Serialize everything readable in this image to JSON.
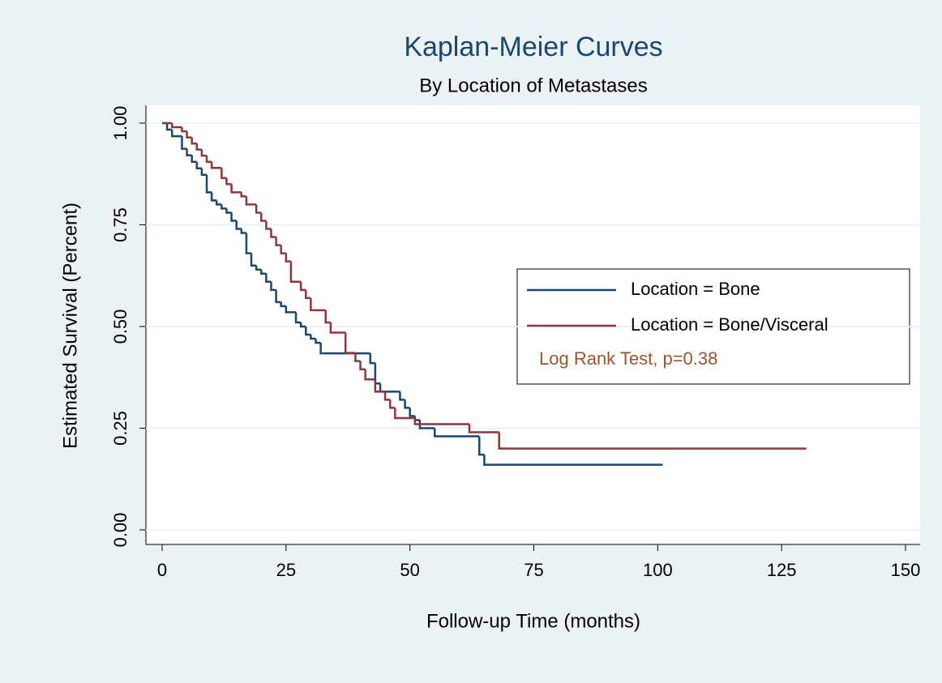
{
  "chart_data": {
    "type": "step",
    "title": "Kaplan-Meier Curves",
    "subtitle": "By Location of Metastases",
    "xlabel": "Follow-up Time (months)",
    "ylabel": "Estimated Survival (Percent)",
    "annotation": "Log Rank Test, p=0.38",
    "annotation_color": "#a0522d",
    "xlim": [
      0,
      150
    ],
    "xticks": [
      0,
      25,
      50,
      75,
      100,
      125,
      150
    ],
    "ylim": [
      0,
      1
    ],
    "yticks": [
      {
        "value": 0,
        "label": "0.00"
      },
      {
        "value": 0.25,
        "label": "0.25"
      },
      {
        "value": 0.5,
        "label": "0.50"
      },
      {
        "value": 0.75,
        "label": "0.75"
      },
      {
        "value": 1,
        "label": "1.00"
      }
    ],
    "grid": true,
    "legend": "right",
    "series": [
      {
        "name": "Location = Bone",
        "color": "#1a476f",
        "x": [
          0,
          1,
          2,
          4,
          5,
          6,
          7,
          8,
          9,
          10,
          11,
          12,
          13,
          14,
          15,
          16,
          17,
          18,
          19,
          20,
          21,
          22,
          23,
          24,
          25,
          27,
          28,
          29,
          30,
          31,
          32,
          42,
          43,
          44,
          48,
          49,
          50,
          51,
          52,
          55,
          64,
          65,
          101
        ],
        "values": [
          1.0,
          0.984,
          0.968,
          0.937,
          0.921,
          0.905,
          0.889,
          0.873,
          0.83,
          0.81,
          0.8,
          0.79,
          0.78,
          0.76,
          0.74,
          0.73,
          0.68,
          0.65,
          0.64,
          0.63,
          0.61,
          0.59,
          0.56,
          0.55,
          0.535,
          0.51,
          0.5,
          0.48,
          0.47,
          0.46,
          0.434,
          0.41,
          0.36,
          0.34,
          0.32,
          0.3,
          0.28,
          0.27,
          0.25,
          0.23,
          0.185,
          0.16,
          0.16
        ]
      },
      {
        "name": "Location = Bone/Visceral",
        "color": "#90353b",
        "x": [
          0,
          2,
          4,
          5,
          6,
          7,
          8,
          9,
          10,
          12,
          13,
          14,
          16,
          17,
          19,
          20,
          21,
          22,
          23,
          24,
          25,
          26,
          28,
          29,
          30,
          33,
          34,
          37,
          39,
          40,
          41,
          43,
          45,
          46,
          47,
          51,
          62,
          68,
          130
        ],
        "values": [
          1.0,
          0.99,
          0.98,
          0.965,
          0.95,
          0.935,
          0.92,
          0.905,
          0.89,
          0.865,
          0.85,
          0.83,
          0.82,
          0.8,
          0.78,
          0.76,
          0.74,
          0.72,
          0.7,
          0.68,
          0.66,
          0.61,
          0.59,
          0.57,
          0.54,
          0.51,
          0.485,
          0.435,
          0.415,
          0.395,
          0.37,
          0.34,
          0.32,
          0.3,
          0.275,
          0.26,
          0.24,
          0.2,
          0.2
        ]
      }
    ]
  }
}
